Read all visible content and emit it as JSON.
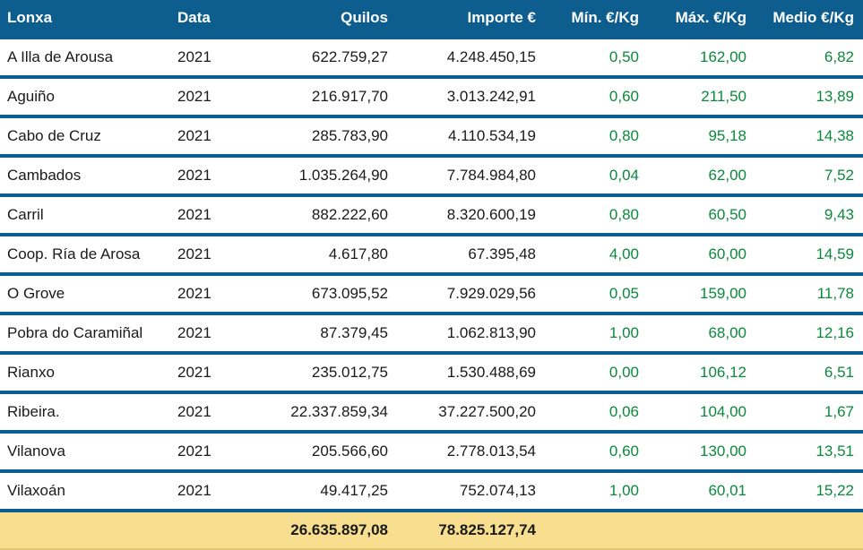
{
  "table": {
    "columns": [
      {
        "key": "lonxa",
        "label": "Lonxa",
        "align": "left"
      },
      {
        "key": "data",
        "label": "Data",
        "align": "left"
      },
      {
        "key": "quilos",
        "label": "Quilos",
        "align": "right"
      },
      {
        "key": "importe",
        "label": "Importe €",
        "align": "right"
      },
      {
        "key": "min",
        "label": "Mín. €/Kg",
        "align": "right",
        "price": true
      },
      {
        "key": "max",
        "label": "Máx. €/Kg",
        "align": "right",
        "price": true
      },
      {
        "key": "medio",
        "label": "Medio €/Kg",
        "align": "right",
        "price": true
      }
    ],
    "rows": [
      {
        "lonxa": "A Illa de Arousa",
        "data": "2021",
        "quilos": "622.759,27",
        "importe": "4.248.450,15",
        "min": "0,50",
        "max": "162,00",
        "medio": "6,82"
      },
      {
        "lonxa": "Aguiño",
        "data": "2021",
        "quilos": "216.917,70",
        "importe": "3.013.242,91",
        "min": "0,60",
        "max": "211,50",
        "medio": "13,89"
      },
      {
        "lonxa": "Cabo de Cruz",
        "data": "2021",
        "quilos": "285.783,90",
        "importe": "4.110.534,19",
        "min": "0,80",
        "max": "95,18",
        "medio": "14,38"
      },
      {
        "lonxa": "Cambados",
        "data": "2021",
        "quilos": "1.035.264,90",
        "importe": "7.784.984,80",
        "min": "0,04",
        "max": "62,00",
        "medio": "7,52"
      },
      {
        "lonxa": "Carril",
        "data": "2021",
        "quilos": "882.222,60",
        "importe": "8.320.600,19",
        "min": "0,80",
        "max": "60,50",
        "medio": "9,43"
      },
      {
        "lonxa": "Coop. Ría de Arosa",
        "data": "2021",
        "quilos": "4.617,80",
        "importe": "67.395,48",
        "min": "4,00",
        "max": "60,00",
        "medio": "14,59"
      },
      {
        "lonxa": "O Grove",
        "data": "2021",
        "quilos": "673.095,52",
        "importe": "7.929.029,56",
        "min": "0,05",
        "max": "159,00",
        "medio": "11,78"
      },
      {
        "lonxa": "Pobra do Caramiñal",
        "data": "2021",
        "quilos": "87.379,45",
        "importe": "1.062.813,90",
        "min": "1,00",
        "max": "68,00",
        "medio": "12,16"
      },
      {
        "lonxa": "Rianxo",
        "data": "2021",
        "quilos": "235.012,75",
        "importe": "1.530.488,69",
        "min": "0,00",
        "max": "106,12",
        "medio": "6,51"
      },
      {
        "lonxa": "Ribeira.",
        "data": "2021",
        "quilos": "22.337.859,34",
        "importe": "37.227.500,20",
        "min": "0,06",
        "max": "104,00",
        "medio": "1,67"
      },
      {
        "lonxa": "Vilanova",
        "data": "2021",
        "quilos": "205.566,60",
        "importe": "2.778.013,54",
        "min": "0,60",
        "max": "130,00",
        "medio": "13,51"
      },
      {
        "lonxa": "Vilaxoán",
        "data": "2021",
        "quilos": "49.417,25",
        "importe": "752.074,13",
        "min": "1,00",
        "max": "60,01",
        "medio": "15,22"
      }
    ],
    "totals": {
      "quilos": "26.635.897,08",
      "importe": "78.825.127,74"
    },
    "header_bg": "#0d5d8f",
    "header_fg": "#ffffff",
    "row_border": "#0d5d8f",
    "price_color": "#0a8a3a",
    "totals_bg": "#f7df8f"
  }
}
